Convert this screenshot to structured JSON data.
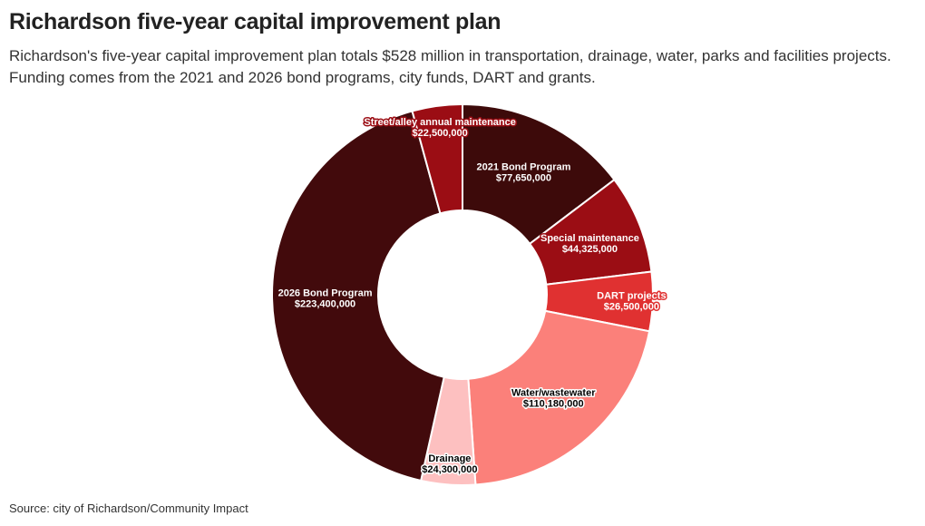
{
  "title": "Richardson five-year capital improvement plan",
  "subtitle": "Richardson's five-year capital improvement plan totals $528 million in transportation, drainage, water, parks and facilities projects. Funding comes from the 2021 and 2026 bond programs, city funds, DART and grants.",
  "source": "Source: city of Richardson/Community Impact",
  "chart_data": {
    "type": "pie",
    "donut": true,
    "slices": [
      {
        "label": "2021 Bond Program",
        "value": 77650000,
        "value_label": "$77,650,000",
        "color": "#3d0a0a",
        "text_color": "#ffffff"
      },
      {
        "label": "Special maintenance",
        "value": 44325000,
        "value_label": "$44,325,000",
        "color": "#9b0d14",
        "text_color": "#ffffff"
      },
      {
        "label": "DART projects",
        "value": 26500000,
        "value_label": "$26,500,000",
        "color": "#e03131",
        "text_color": "#ffffff"
      },
      {
        "label": "Water/wastewater",
        "value": 110180000,
        "value_label": "$110,180,000",
        "color": "#fb807a",
        "text_color": "#000000"
      },
      {
        "label": "Drainage",
        "value": 24300000,
        "value_label": "$24,300,000",
        "color": "#fdc0c0",
        "text_color": "#000000"
      },
      {
        "label": "2026 Bond Program",
        "value": 223400000,
        "value_label": "$223,400,000",
        "color": "#420a0c",
        "text_color": "#ffffff"
      },
      {
        "label": "Street/alley annual maintenance",
        "value": 22500000,
        "value_label": "$22,500,000",
        "color": "#9b0d14",
        "text_color": "#ffffff"
      }
    ]
  }
}
